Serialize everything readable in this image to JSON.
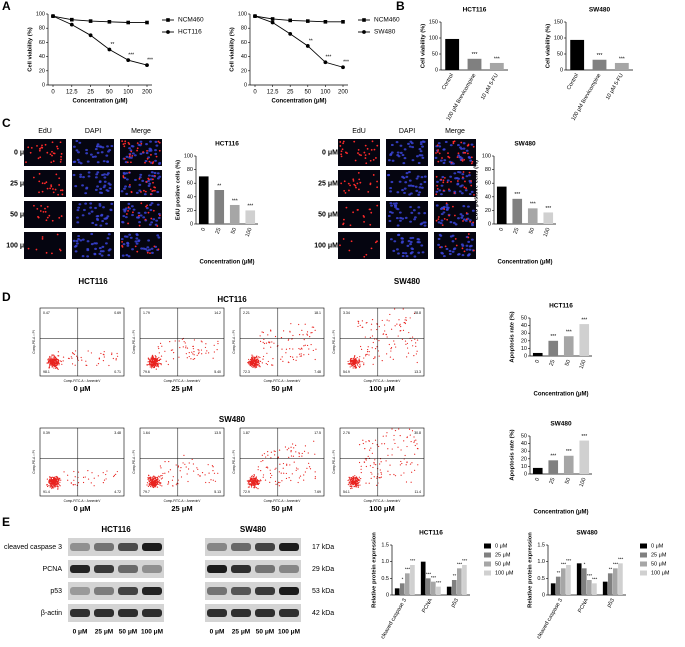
{
  "panel_letters": [
    "A",
    "B",
    "C",
    "D",
    "E"
  ],
  "chart_data": [
    {
      "type": "line",
      "x_label": "Concentration (μM)",
      "y_label": "Cell viability (%)",
      "categories": [
        "0",
        "12.5",
        "25",
        "50",
        "100",
        "200"
      ],
      "series": [
        {
          "name": "NCM460",
          "color": "#000000",
          "marker": "square",
          "values": [
            97,
            92,
            90,
            89,
            88,
            88
          ]
        },
        {
          "name": "HCT116",
          "color": "#000000",
          "marker": "circle",
          "values": [
            97,
            85,
            70,
            50,
            35,
            28
          ],
          "annotations": [
            null,
            null,
            null,
            "**",
            "***",
            "***"
          ]
        }
      ],
      "ylim": [
        0,
        100
      ],
      "yticks": [
        0,
        20,
        40,
        60,
        80,
        100
      ]
    },
    {
      "type": "line",
      "x_label": "Concentration (μM)",
      "y_label": "Cell viability (%)",
      "categories": [
        "0",
        "12.5",
        "25",
        "50",
        "100",
        "200"
      ],
      "series": [
        {
          "name": "NCM460",
          "color": "#000000",
          "marker": "square",
          "values": [
            97,
            93,
            91,
            90,
            89,
            89
          ]
        },
        {
          "name": "SW480",
          "color": "#000000",
          "marker": "circle",
          "values": [
            97,
            88,
            72,
            55,
            32,
            25
          ],
          "annotations": [
            null,
            null,
            null,
            "**",
            "***",
            "***"
          ]
        }
      ],
      "ylim": [
        0,
        100
      ],
      "yticks": [
        0,
        20,
        40,
        60,
        80,
        100
      ]
    },
    {
      "type": "bar",
      "title": "HCT116",
      "y_label": "Cell viability (%)",
      "categories": [
        "Control",
        "100 μM Brevicompine",
        "10 μM 5-FU"
      ],
      "values": [
        97,
        35,
        22
      ],
      "colors": [
        "#000000",
        "#808080",
        "#a6a6a6"
      ],
      "annotations": [
        null,
        "***",
        "***"
      ],
      "ylim": [
        0,
        150
      ],
      "yticks": [
        0,
        50,
        100,
        150
      ]
    },
    {
      "type": "bar",
      "title": "SW480",
      "y_label": "Cell viability (%)",
      "categories": [
        "Control",
        "100 μM Brevicompine",
        "10 μM 5-FU"
      ],
      "values": [
        94,
        32,
        22
      ],
      "colors": [
        "#000000",
        "#808080",
        "#a6a6a6"
      ],
      "annotations": [
        null,
        "***",
        "***"
      ],
      "ylim": [
        0,
        150
      ],
      "yticks": [
        0,
        50,
        100,
        150
      ]
    },
    {
      "type": "bar",
      "title": "HCT116",
      "x_label": "Concentration (μM)",
      "y_label": "EdU positive cells (%)",
      "categories": [
        "0",
        "25",
        "50",
        "100"
      ],
      "values": [
        70,
        50,
        28,
        20
      ],
      "colors": [
        "#000000",
        "#808080",
        "#a6a6a6",
        "#d0d0d0"
      ],
      "annotations": [
        null,
        "**",
        "***",
        "***"
      ],
      "ylim": [
        0,
        100
      ],
      "yticks": [
        0,
        20,
        40,
        60,
        80,
        100
      ]
    },
    {
      "type": "bar",
      "title": "SW480",
      "x_label": "Concentration (μM)",
      "y_label": "EdU positive cells (%)",
      "categories": [
        "0",
        "25",
        "50",
        "100"
      ],
      "values": [
        55,
        37,
        23,
        17
      ],
      "colors": [
        "#000000",
        "#808080",
        "#a6a6a6",
        "#d0d0d0"
      ],
      "annotations": [
        null,
        "***",
        "***",
        "***"
      ],
      "ylim": [
        0,
        100
      ],
      "yticks": [
        0,
        20,
        40,
        60,
        80,
        100
      ]
    },
    {
      "type": "bar",
      "title": "HCT116",
      "x_label": "Concentration (μM)",
      "y_label": "Apoptosis rate (%)",
      "categories": [
        "0",
        "25",
        "50",
        "100"
      ],
      "values": [
        4,
        20,
        26,
        42
      ],
      "colors": [
        "#000000",
        "#808080",
        "#a6a6a6",
        "#d0d0d0"
      ],
      "annotations": [
        null,
        "***",
        "***",
        "***"
      ],
      "ylim": [
        0,
        50
      ],
      "yticks": [
        0,
        10,
        20,
        30,
        40,
        50
      ]
    },
    {
      "type": "bar",
      "title": "SW480",
      "x_label": "Concentration (μM)",
      "y_label": "Apoptosis rate (%)",
      "categories": [
        "0",
        "25",
        "50",
        "100"
      ],
      "values": [
        8,
        18,
        24,
        44
      ],
      "colors": [
        "#000000",
        "#808080",
        "#a6a6a6",
        "#d0d0d0"
      ],
      "annotations": [
        null,
        "***",
        "***",
        "***"
      ],
      "ylim": [
        0,
        50
      ],
      "yticks": [
        0,
        10,
        20,
        30,
        40,
        50
      ]
    },
    {
      "type": "grouped_bar",
      "title": "HCT116",
      "y_label": "Relative protein expression",
      "categories": [
        "cleaved caspase 3",
        "PCNA",
        "p53"
      ],
      "series": [
        {
          "name": "0 μM",
          "color": "#000000",
          "values": [
            0.2,
            1.0,
            0.25
          ],
          "annotations": [
            null,
            null,
            null
          ]
        },
        {
          "name": "25 μM",
          "color": "#808080",
          "values": [
            0.35,
            0.5,
            0.45
          ],
          "annotations": [
            "*",
            "***",
            "**"
          ]
        },
        {
          "name": "50 μM",
          "color": "#a6a6a6",
          "values": [
            0.65,
            0.4,
            0.8
          ],
          "annotations": [
            "***",
            "***",
            "***"
          ]
        },
        {
          "name": "100 μM",
          "color": "#d0d0d0",
          "values": [
            0.9,
            0.25,
            0.9
          ],
          "annotations": [
            "***",
            "***",
            "***"
          ]
        }
      ],
      "ylim": [
        0,
        1.5
      ],
      "yticks": [
        0,
        0.5,
        {
          "value": 1,
          "label": "1.0"
        },
        1.5
      ]
    },
    {
      "type": "grouped_bar",
      "title": "SW480",
      "y_label": "Relative protein expression",
      "categories": [
        "cleaved caspase 3",
        "PCNA",
        "p53"
      ],
      "series": [
        {
          "name": "0 μM",
          "color": "#000000",
          "values": [
            0.35,
            0.95,
            0.4
          ],
          "annotations": [
            null,
            null,
            null
          ]
        },
        {
          "name": "25 μM",
          "color": "#808080",
          "values": [
            0.55,
            0.8,
            0.65
          ],
          "annotations": [
            "**",
            "*",
            "**"
          ]
        },
        {
          "name": "50 μM",
          "color": "#a6a6a6",
          "values": [
            0.8,
            0.45,
            0.8
          ],
          "annotations": [
            "***",
            "***",
            "***"
          ]
        },
        {
          "name": "100 μM",
          "color": "#d0d0d0",
          "values": [
            0.9,
            0.35,
            0.95
          ],
          "annotations": [
            "***",
            "***",
            "***"
          ]
        }
      ],
      "ylim": [
        0,
        1.5
      ],
      "yticks": [
        0,
        0.5,
        {
          "value": 1,
          "label": "1.0"
        },
        1.5
      ]
    }
  ],
  "edu": [
    {
      "title": "HCT116",
      "columns": [
        "EdU",
        "DAPI",
        "Merge"
      ],
      "rows": [
        "0 μM",
        "25 μM",
        "50 μM",
        "100 μM"
      ]
    },
    {
      "title": "SW480",
      "columns": [
        "EdU",
        "DAPI",
        "Merge"
      ],
      "rows": [
        "0 μM",
        "25 μM",
        "50 μM",
        "100 μM"
      ]
    }
  ],
  "flow": [
    {
      "title": "HCT116",
      "x_label": "Comp-FITC-A :: AnnexinV",
      "y_label": "Comp-PE-A :: PI",
      "plots": [
        {
          "label": "0 μM",
          "quadrants": [
            "0.47",
            "0.69",
            "98.1",
            "0.71"
          ]
        },
        {
          "label": "25 μM",
          "quadrants": [
            "1.79",
            "14.2",
            "79.6",
            "5.40"
          ]
        },
        {
          "label": "50 μM",
          "quadrants": [
            "2.21",
            "18.1",
            "72.3",
            "7.48"
          ]
        },
        {
          "label": "100 μM",
          "quadrants": [
            "3.34",
            "28.8",
            "54.9",
            "13.3"
          ]
        }
      ]
    },
    {
      "title": "SW480",
      "x_label": "Comp-FITC-A :: AnnexinV",
      "y_label": "Comp-PE-A :: PI",
      "plots": [
        {
          "label": "0 μM",
          "quadrants": [
            "0.39",
            "3.48",
            "91.4",
            "4.72"
          ]
        },
        {
          "label": "25 μM",
          "quadrants": [
            "1.64",
            "13.5",
            "79.7",
            "5.13"
          ]
        },
        {
          "label": "50 μM",
          "quadrants": [
            "1.87",
            "17.5",
            "72.9",
            "7.69"
          ]
        },
        {
          "label": "100 μM",
          "quadrants": [
            "2.76",
            "30.8",
            "54.1",
            "11.4"
          ]
        }
      ]
    }
  ],
  "blot": {
    "proteins": [
      "cleaved caspase 3",
      "PCNA",
      "p53",
      "β-actin"
    ],
    "weights": [
      "17 kDa",
      "29 kDa",
      "53 kDa",
      "42 kDa"
    ],
    "groups": [
      {
        "title": "HCT116",
        "lanes": [
          "0 μM",
          "25 μM",
          "50 μM",
          "100 μM"
        ]
      },
      {
        "title": "SW480",
        "lanes": [
          "0 μM",
          "25 μM",
          "50 μM",
          "100 μM"
        ]
      }
    ]
  }
}
